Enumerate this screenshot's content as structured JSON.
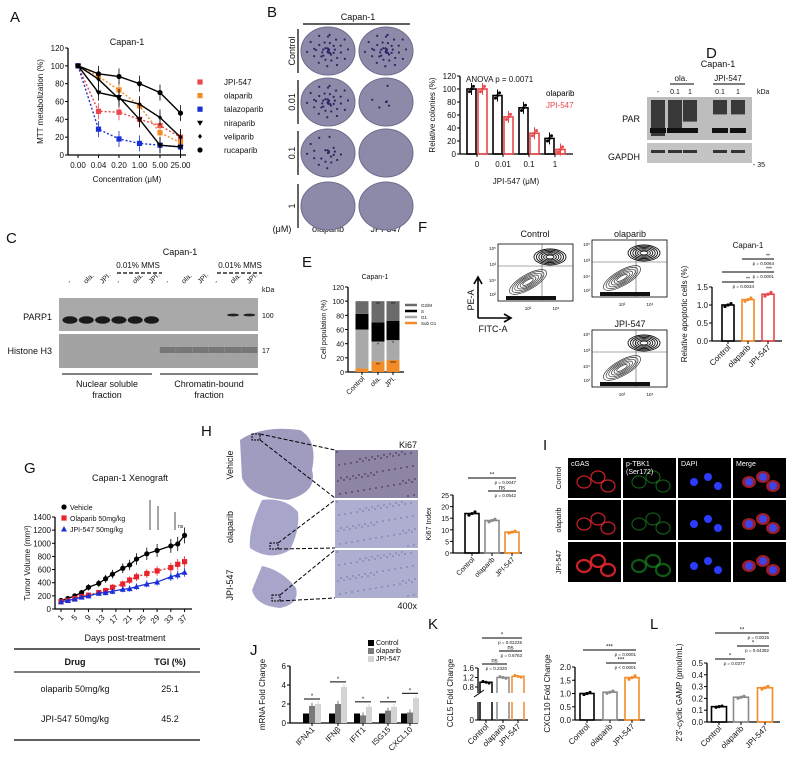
{
  "panels": {
    "A": "A",
    "B": "B",
    "C": "C",
    "D": "D",
    "E": "E",
    "F": "F",
    "G": "G",
    "H": "H",
    "I": "I",
    "J": "J",
    "K": "K",
    "L": "L"
  },
  "colors": {
    "black": "#000000",
    "red": "#e8474b",
    "orange": "#f28c28",
    "blue": "#1a2fd6",
    "gray": "#8a8a8a",
    "lightgray": "#cfcfcf"
  },
  "panelB": {
    "title": "Capan-1",
    "rows": [
      "Control",
      "0.01",
      "0.1",
      "1"
    ],
    "unit": "(μM)",
    "columns": [
      "olaparib",
      "JPI-547"
    ]
  },
  "panelC": {
    "title": "Capan-1",
    "mms": [
      "0.01% MMS",
      "0.01% MMS"
    ],
    "lanes": [
      "-",
      "ola.",
      "JPI.",
      "-",
      "ola.",
      "JPI.",
      "-",
      "ola.",
      "JPI.",
      "-",
      "ola.",
      "JPI."
    ],
    "kda": "kDa",
    "rows": [
      {
        "label": "PARP1",
        "marker": "100"
      },
      {
        "label": "Histone H3",
        "marker": "17"
      }
    ],
    "captions": [
      [
        "Nuclear soluble",
        "fraction"
      ],
      [
        "Chromatin-bound",
        "fraction"
      ]
    ]
  },
  "panelD": {
    "title": "Capan-1",
    "groups": [
      "ola.",
      "JPI-547"
    ],
    "lanes": [
      "-",
      "0.1",
      "1",
      "0.1",
      "1"
    ],
    "kda": "kDa",
    "rows": [
      {
        "label": "PAR",
        "marker": ""
      },
      {
        "label": "GAPDH",
        "marker": "- 35"
      }
    ]
  },
  "panelF": {
    "plots": [
      "Control",
      "olaparib",
      "JPI-547"
    ],
    "yaxis": "PE-A",
    "xaxis": "FITC-A",
    "ticks": [
      "10²",
      "10³",
      "10⁴",
      "10⁵"
    ]
  },
  "panelH": {
    "rows": [
      "Vehicle",
      "olaparib",
      "JPI-547"
    ],
    "stain": "Ki67",
    "magnification": "400x"
  },
  "panelI": {
    "columns": [
      "cGAS",
      "p-TBK1",
      "(Ser172)",
      "DAPI",
      "Merge"
    ],
    "rows": [
      "Control",
      "olaparib",
      "JPI-547"
    ]
  },
  "tableG": {
    "headers": [
      "Drug",
      "TGI (%)"
    ],
    "rows": [
      [
        "olaparib 50mg/kg",
        "25.1"
      ],
      [
        "JPI-547 50mg/kg",
        "45.2"
      ]
    ]
  },
  "chart_data": [
    {
      "id": "A",
      "type": "line",
      "title": "Capan-1",
      "xlabel": "Concentration (μM)",
      "ylabel": "MTT metabolization (%)",
      "categories": [
        "0.00",
        "0.04",
        "0.20",
        "1.00",
        "5.00",
        "25.00"
      ],
      "ylim": [
        0,
        120
      ],
      "yticks": [
        "0",
        "20",
        "40",
        "60",
        "80",
        "100",
        "120"
      ],
      "legend_position": "right",
      "series": [
        {
          "name": "JPI-547",
          "marker": "square",
          "dashed": true,
          "color": "#e8474b",
          "values": [
            100,
            49,
            48,
            40,
            33,
            20
          ]
        },
        {
          "name": "olaparib",
          "marker": "square",
          "dashed": true,
          "color": "#f28c28",
          "values": [
            100,
            88,
            73,
            55,
            25,
            14
          ]
        },
        {
          "name": "talazoparib",
          "marker": "square",
          "dashed": true,
          "color": "#1a2fd6",
          "values": [
            100,
            29,
            18,
            13,
            11,
            9
          ]
        },
        {
          "name": "niraparib",
          "marker": "triangle-down",
          "dashed": false,
          "color": "#000000",
          "values": [
            100,
            70,
            65,
            40,
            11,
            9
          ]
        },
        {
          "name": "veliparib",
          "marker": "diamond",
          "dashed": false,
          "color": "#000000",
          "values": [
            100,
            85,
            63,
            57,
            42,
            20
          ]
        },
        {
          "name": "rucaparib",
          "marker": "circle",
          "dashed": false,
          "color": "#000000",
          "values": [
            100,
            91,
            88,
            80,
            70,
            47
          ]
        }
      ]
    },
    {
      "id": "B",
      "type": "bar",
      "title": "",
      "annotation": "ANOVA p = 0.0071",
      "xlabel": "JPI-547 (μM)",
      "ylabel": "Relative colonies (%)",
      "categories": [
        "0",
        "0.01",
        "0.1",
        "1"
      ],
      "ylim": [
        0,
        120
      ],
      "yticks": [
        "0",
        "20",
        "40",
        "60",
        "80",
        "100",
        "120"
      ],
      "legend_position": "top-right",
      "series": [
        {
          "name": "olaparib",
          "color": "#000000",
          "values": [
            100,
            90,
            71,
            24
          ]
        },
        {
          "name": "JPI-547",
          "color": "#e8474b",
          "values": [
            100,
            57,
            32,
            7
          ]
        }
      ]
    },
    {
      "id": "E",
      "type": "bar",
      "stacked": true,
      "title": "Capan-1",
      "xlabel": "",
      "ylabel": "Cell population  (%)",
      "categories": [
        "Control",
        "ola.",
        "JPI."
      ],
      "ylim": [
        0,
        120
      ],
      "yticks": [
        "0",
        "20",
        "40",
        "60",
        "80",
        "100",
        "120"
      ],
      "legend_position": "right",
      "series": [
        {
          "name": "Sub G1",
          "color": "#f28c28",
          "values": [
            5,
            15,
            17
          ],
          "sig": [
            "",
            "**",
            "***"
          ]
        },
        {
          "name": "G1",
          "color": "#a9a9a9",
          "values": [
            55,
            28,
            28
          ],
          "sig": [
            "",
            "*",
            "*"
          ]
        },
        {
          "name": "S",
          "color": "#000000",
          "values": [
            22,
            27,
            27
          ],
          "sig": [
            "",
            "***",
            "***"
          ]
        },
        {
          "name": "G2/M",
          "color": "#6b6b6b",
          "values": [
            18,
            30,
            28
          ],
          "sig": [
            "",
            "**",
            "**"
          ]
        }
      ]
    },
    {
      "id": "F",
      "type": "bar",
      "title": "Capan-1",
      "xlabel": "",
      "ylabel": "Relative apoptotic cells (%)",
      "categories": [
        "Control",
        "olaparib",
        "JPI-547"
      ],
      "ylim": [
        0,
        1.5
      ],
      "yticks": [
        "0.0",
        "0.5",
        "1.0",
        "1.5"
      ],
      "series": [
        {
          "name": "apoptotic",
          "colors": [
            "#000000",
            "#f28c28",
            "#e8474b"
          ],
          "values": [
            1.0,
            1.15,
            1.3
          ]
        }
      ],
      "brackets": [
        {
          "from": 0,
          "to": 1,
          "stars": "**",
          "p": "p = 0.0034"
        },
        {
          "from": 0,
          "to": 2,
          "stars": "***",
          "p": "p = 0.0001"
        },
        {
          "from": 1,
          "to": 2,
          "stars": "**",
          "p": "p = 0.0064"
        }
      ]
    },
    {
      "id": "G",
      "type": "line",
      "title": "Capan-1 Xenograft",
      "xlabel": "Days post-treatment",
      "ylabel": "Tumor Volume (mm³)",
      "xticks": [
        "1",
        "5",
        "9",
        "13",
        "17",
        "21",
        "25",
        "29",
        "33",
        "37"
      ],
      "ylim": [
        0,
        1400
      ],
      "yticks": [
        "0",
        "200",
        "400",
        "600",
        "800",
        "1000",
        "1200",
        "1400"
      ],
      "legend_position": "top-left",
      "sig_label": "ns",
      "x": [
        1,
        3,
        5,
        7,
        9,
        12,
        14,
        16,
        19,
        21,
        23,
        26,
        29,
        33,
        35,
        37
      ],
      "series": [
        {
          "name": "Vehicle",
          "marker": "circle",
          "dashed": false,
          "color": "#000000",
          "values": [
            130,
            160,
            200,
            250,
            330,
            390,
            460,
            530,
            620,
            670,
            760,
            840,
            890,
            960,
            990,
            1120
          ]
        },
        {
          "name": "Olaparib 50mg/kg",
          "marker": "square",
          "dashed": true,
          "color": "#e8232b",
          "values": [
            110,
            130,
            160,
            190,
            210,
            250,
            280,
            330,
            380,
            440,
            490,
            540,
            580,
            630,
            680,
            720
          ]
        },
        {
          "name": "JPI-547 50mg/kg",
          "marker": "triangle",
          "dashed": false,
          "color": "#1a2fd6",
          "values": [
            110,
            130,
            150,
            180,
            200,
            240,
            250,
            270,
            300,
            310,
            340,
            380,
            410,
            490,
            520,
            560
          ]
        }
      ]
    },
    {
      "id": "H",
      "type": "bar",
      "title": "",
      "xlabel": "",
      "ylabel": "Ki67 Index",
      "categories": [
        "Control",
        "olaparib",
        "JPI-547"
      ],
      "ylim": [
        0,
        25
      ],
      "yticks": [
        "0",
        "5",
        "10",
        "15",
        "20",
        "25"
      ],
      "series": [
        {
          "name": "Ki67",
          "colors": [
            "#000000",
            "#8a8a8a",
            "#f28c28"
          ],
          "values": [
            17,
            14,
            9
          ]
        }
      ],
      "brackets": [
        {
          "from": 1,
          "to": 2,
          "stars": "ns",
          "p": "p = 0.0542"
        },
        {
          "from": 0,
          "to": 2,
          "stars": "**",
          "p": "p = 0.0047"
        }
      ]
    },
    {
      "id": "J",
      "type": "bar",
      "grouped": true,
      "title": "",
      "xlabel": "",
      "ylabel": "mRNA Fold Change",
      "categories": [
        "IFNA1",
        "IFNβ",
        "IFIT1",
        "ISG15",
        "CXCL10"
      ],
      "ylim": [
        0,
        6
      ],
      "yticks": [
        "0",
        "2",
        "4",
        "6"
      ],
      "legend_position": "top-right",
      "sig_label": "*",
      "series": [
        {
          "name": "Control",
          "color": "#000000",
          "values": [
            1,
            1,
            1,
            1,
            1
          ]
        },
        {
          "name": "olaparib",
          "color": "#7a7a7a",
          "values": [
            1.8,
            2.0,
            0.8,
            1.3,
            1.1
          ]
        },
        {
          "name": "JPI-547",
          "color": "#d4d4d4",
          "values": [
            2.0,
            3.8,
            1.7,
            1.7,
            2.6
          ]
        }
      ]
    },
    {
      "id": "K1",
      "type": "bar",
      "title": "",
      "broken_axis": true,
      "xlabel": "",
      "ylabel": "CCL5 Fold Change",
      "categories": [
        "Control",
        "olaparib",
        "JPI-547"
      ],
      "ylim": [
        0,
        1.6
      ],
      "yticks": [
        "0",
        "0.8",
        "1.2",
        "1.6"
      ],
      "series": [
        {
          "name": "CCL5",
          "colors": [
            "#000000",
            "#8a8a8a",
            "#f28c28"
          ],
          "values": [
            1.0,
            1.2,
            1.25
          ]
        }
      ],
      "brackets": [
        {
          "from": 0,
          "to": 1,
          "stars": "ns",
          "p": "p = 0.2320"
        },
        {
          "from": 1,
          "to": 2,
          "stars": "ns",
          "p": "p = 0.6763"
        },
        {
          "from": 0,
          "to": 2,
          "stars": "*",
          "p": "p = 0.02225"
        }
      ]
    },
    {
      "id": "K2",
      "type": "bar",
      "title": "",
      "xlabel": "",
      "ylabel": "CXCL10 Fold Change",
      "categories": [
        "Control",
        "olaparib",
        "JPI-547"
      ],
      "ylim": [
        0,
        2.0
      ],
      "yticks": [
        "0.0",
        "0.5",
        "1.0",
        "1.5",
        "2.0"
      ],
      "series": [
        {
          "name": "CXCL10",
          "colors": [
            "#000000",
            "#8a8a8a",
            "#f28c28"
          ],
          "values": [
            1.0,
            1.05,
            1.6
          ]
        }
      ],
      "brackets": [
        {
          "from": 1,
          "to": 2,
          "stars": "***",
          "p": "p < 0.0001"
        },
        {
          "from": 0,
          "to": 2,
          "stars": "***",
          "p": "p = 0.0001"
        }
      ]
    },
    {
      "id": "L",
      "type": "bar",
      "title": "",
      "xlabel": "",
      "ylabel": "2'3'-cyclic GAMP (pmol/mL)",
      "categories": [
        "Control",
        "olaparib",
        "JPI-547"
      ],
      "ylim": [
        0,
        0.5
      ],
      "yticks": [
        "0.0",
        "0.1",
        "0.2",
        "0.3",
        "0.4",
        "0.5"
      ],
      "series": [
        {
          "name": "cGAMP",
          "colors": [
            "#000000",
            "#8a8a8a",
            "#f28c28"
          ],
          "values": [
            0.13,
            0.21,
            0.29
          ]
        }
      ],
      "brackets": [
        {
          "from": 0,
          "to": 1,
          "stars": "*",
          "p": "p = 0.0377"
        },
        {
          "from": 1,
          "to": 2,
          "stars": "*",
          "p": "p = 0.04392"
        },
        {
          "from": 0,
          "to": 2,
          "stars": "**",
          "p": "p = 0.0015"
        }
      ]
    }
  ]
}
